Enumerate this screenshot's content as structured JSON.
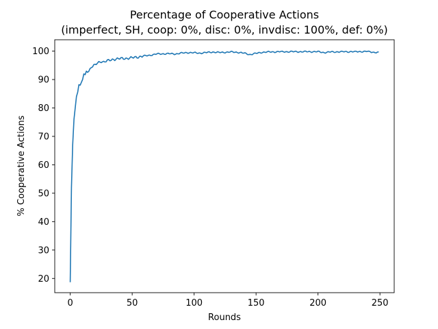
{
  "chart_data": {
    "type": "line",
    "title": "Percentage of Cooperative Actions",
    "subtitle": "(imperfect, SH, coop: 0%, disc: 0%, invdisc: 100%, def: 0%)",
    "xlabel": "Rounds",
    "ylabel": "% Cooperative Actions",
    "xlim": [
      -12.5,
      261.5
    ],
    "ylim": [
      15,
      104
    ],
    "xticks": [
      0,
      50,
      100,
      150,
      200,
      250
    ],
    "yticks": [
      20,
      30,
      40,
      50,
      60,
      70,
      80,
      90,
      100
    ],
    "grid": false,
    "line_color": "#1f77b4",
    "series": [
      {
        "keypoints": [
          [
            0,
            18.7
          ],
          [
            1,
            52
          ],
          [
            2,
            67
          ],
          [
            3,
            76
          ],
          [
            4,
            80
          ],
          [
            5,
            84
          ],
          [
            6,
            85.5
          ],
          [
            7,
            88.2
          ],
          [
            8,
            88
          ],
          [
            9,
            89
          ],
          [
            10,
            90
          ],
          [
            11,
            92
          ],
          [
            12,
            91.7
          ],
          [
            13,
            93
          ],
          [
            15,
            93
          ],
          [
            17,
            94.5
          ],
          [
            20,
            95
          ],
          [
            22,
            95.8
          ],
          [
            25,
            96.5
          ],
          [
            27,
            96.2
          ],
          [
            30,
            96.5
          ],
          [
            35,
            97.2
          ],
          [
            40,
            97.3
          ],
          [
            45,
            97.5
          ],
          [
            50,
            97.6
          ],
          [
            55,
            98
          ],
          [
            60,
            98.3
          ],
          [
            65,
            98.6
          ],
          [
            70,
            99
          ],
          [
            80,
            99.1
          ],
          [
            85,
            99
          ],
          [
            90,
            99.3
          ],
          [
            95,
            99.5
          ],
          [
            100,
            99.4
          ],
          [
            105,
            99.3
          ],
          [
            110,
            99.5
          ],
          [
            115,
            99.7
          ],
          [
            120,
            99.5
          ],
          [
            125,
            99.6
          ],
          [
            130,
            99.7
          ],
          [
            135,
            99.6
          ],
          [
            140,
            99.3
          ],
          [
            145,
            98.8
          ],
          [
            150,
            99.2
          ],
          [
            155,
            99.6
          ],
          [
            160,
            99.7
          ],
          [
            170,
            99.8
          ],
          [
            180,
            99.8
          ],
          [
            190,
            99.8
          ],
          [
            200,
            99.8
          ],
          [
            205,
            99.5
          ],
          [
            210,
            99.7
          ],
          [
            220,
            99.8
          ],
          [
            230,
            99.8
          ],
          [
            240,
            99.9
          ],
          [
            245,
            99.6
          ],
          [
            249,
            99.5
          ]
        ]
      }
    ]
  }
}
